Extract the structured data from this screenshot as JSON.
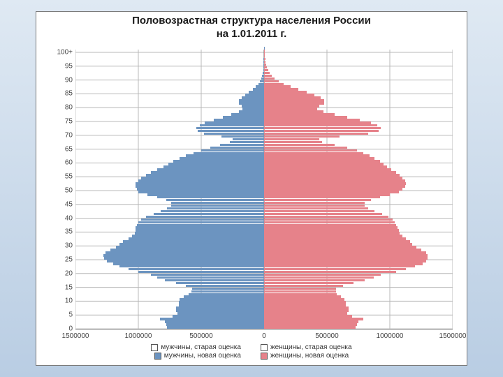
{
  "title_line1": "Половозрастная структура населения России",
  "title_line2": "на 1.01.2011 г.",
  "chart": {
    "type": "population-pyramid",
    "background_color": "#ffffff",
    "grid_color": "#b8b8b8",
    "xlim": [
      -1500000,
      1500000
    ],
    "x_ticks": [
      -1500000,
      -1000000,
      -500000,
      0,
      500000,
      1000000,
      1500000
    ],
    "x_tick_labels": [
      "1500000",
      "1000000",
      "500000",
      "0",
      "500000",
      "1000000",
      "1500000"
    ],
    "ylim": [
      0,
      101
    ],
    "y_ticks": [
      0,
      5,
      10,
      15,
      20,
      25,
      30,
      35,
      40,
      45,
      50,
      55,
      60,
      65,
      70,
      75,
      80,
      85,
      90,
      95,
      100
    ],
    "y_tick_label_100": "100+",
    "male_color": "#6c94c0",
    "female_color": "#e6828a",
    "male_border": "#3a5f87",
    "female_border": "#b3555c",
    "legend": {
      "row1_left": "мужчины, старая оценка",
      "row1_right": "женщины, старая оценка",
      "row2_left": "мужчины, новая оценка",
      "row2_right": "женщины, новая оценка"
    },
    "title_fontsize": 15,
    "axis_fontsize": 10,
    "male": [
      770000,
      780000,
      790000,
      830000,
      730000,
      690000,
      700000,
      700000,
      680000,
      680000,
      670000,
      640000,
      600000,
      580000,
      570000,
      620000,
      700000,
      790000,
      850000,
      900000,
      1000000,
      1080000,
      1150000,
      1200000,
      1250000,
      1270000,
      1280000,
      1260000,
      1220000,
      1180000,
      1150000,
      1120000,
      1080000,
      1050000,
      1030000,
      1020000,
      1020000,
      1010000,
      1000000,
      980000,
      940000,
      880000,
      820000,
      770000,
      740000,
      740000,
      780000,
      850000,
      930000,
      1000000,
      1010000,
      1020000,
      1020000,
      1000000,
      980000,
      940000,
      900000,
      850000,
      800000,
      760000,
      720000,
      670000,
      620000,
      560000,
      500000,
      430000,
      350000,
      270000,
      250000,
      340000,
      480000,
      530000,
      540000,
      510000,
      470000,
      400000,
      330000,
      260000,
      200000,
      170000,
      180000,
      200000,
      200000,
      180000,
      150000,
      120000,
      90000,
      65000,
      45000,
      32000,
      22000,
      15000,
      11000,
      8000,
      6000,
      4500,
      3500,
      2800,
      2200,
      1700,
      1200,
      800
    ],
    "female": [
      730000,
      740000,
      750000,
      790000,
      700000,
      660000,
      670000,
      670000,
      650000,
      650000,
      640000,
      610000,
      580000,
      570000,
      570000,
      630000,
      710000,
      800000,
      870000,
      930000,
      1050000,
      1130000,
      1200000,
      1260000,
      1290000,
      1300000,
      1300000,
      1290000,
      1250000,
      1210000,
      1180000,
      1160000,
      1130000,
      1100000,
      1080000,
      1070000,
      1060000,
      1050000,
      1040000,
      1020000,
      990000,
      940000,
      880000,
      830000,
      800000,
      800000,
      850000,
      920000,
      1000000,
      1070000,
      1100000,
      1120000,
      1130000,
      1120000,
      1100000,
      1080000,
      1050000,
      1010000,
      980000,
      950000,
      920000,
      880000,
      840000,
      790000,
      740000,
      660000,
      560000,
      460000,
      440000,
      600000,
      830000,
      910000,
      930000,
      900000,
      850000,
      760000,
      660000,
      560000,
      470000,
      420000,
      440000,
      480000,
      480000,
      450000,
      400000,
      340000,
      270000,
      210000,
      155000,
      115000,
      85000,
      62000,
      45000,
      33000,
      24000,
      17500,
      13000,
      9500,
      7000,
      5000,
      3500
    ]
  }
}
